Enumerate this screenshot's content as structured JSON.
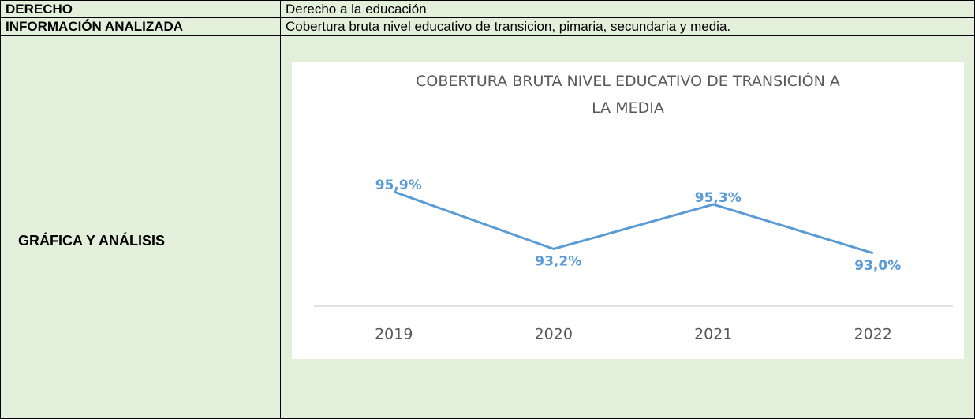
{
  "table": {
    "rows": [
      [
        "DERECHO",
        "Derecho a la educación"
      ],
      [
        "INFORMACIÓN ANALIZADA",
        "Cobertura bruta nivel educativo de transicion, pimaria, secundaria y media."
      ],
      [
        "GRÁFICA Y ANÁLISIS"
      ]
    ]
  },
  "chart_data": {
    "type": "line",
    "title": "COBERTURA BRUTA NIVEL EDUCATIVO DE TRANSICIÓN A LA MEDIA",
    "categories": [
      "2019",
      "2020",
      "2021",
      "2022"
    ],
    "values": [
      95.9,
      93.2,
      95.3,
      93.0
    ],
    "value_labels": [
      "95,9%",
      "93,2%",
      "95,3%",
      "93,0%"
    ],
    "color": "#5b9bd5",
    "ylim": [
      90.5,
      97.5
    ]
  }
}
